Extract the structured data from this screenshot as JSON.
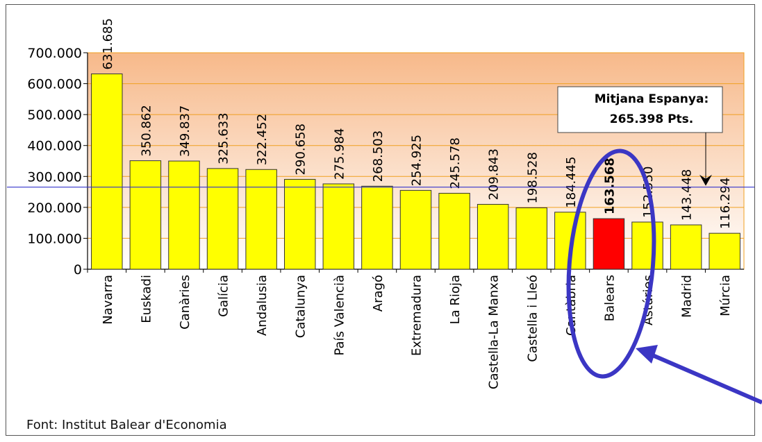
{
  "chart_data": {
    "type": "bar",
    "categories": [
      "Navarra",
      "Euskadi",
      "Canàries",
      "Galícia",
      "Andalusia",
      "Catalunya",
      "País Valencià",
      "Aragó",
      "Extremadura",
      "La Rioja",
      "Castella-La Manxa",
      "Castella i Lleó",
      "Cantàbria",
      "Balears",
      "Astúries",
      "Madrid",
      "Múrcia"
    ],
    "values": [
      631685,
      350862,
      349837,
      325633,
      322452,
      290658,
      275984,
      268503,
      254925,
      245578,
      209843,
      198528,
      184445,
      163568,
      152550,
      143448,
      116294
    ],
    "value_labels": [
      "631.685",
      "350.862",
      "349.837",
      "325.633",
      "322.452",
      "290.658",
      "275.984",
      "268.503",
      "254.925",
      "245.578",
      "209.843",
      "198.528",
      "184.445",
      "163.568",
      "152.550",
      "143.448",
      "116.294"
    ],
    "highlight_category": "Balears",
    "ylim": [
      0,
      700000
    ],
    "yticks": [
      0,
      100000,
      200000,
      300000,
      400000,
      500000,
      600000,
      700000
    ],
    "ytick_labels": [
      "0",
      "100.000",
      "200.000",
      "300.000",
      "400.000",
      "500.000",
      "600.000",
      "700.000"
    ],
    "average": 265398,
    "average_note": {
      "line1": "Mitjana Espanya:",
      "line2": "265.398 Pts."
    },
    "colors": {
      "bar": "#ffff00",
      "highlight_bar": "#ff0000",
      "plot_bg_top": "#f7b98a",
      "plot_bg_bottom": "#ffffff",
      "grid": "#f0a020",
      "average_line": "#3333cc",
      "annotation_circle": "#3b36c4"
    },
    "grid": true
  },
  "source_note": "Font: Institut Balear d'Economia"
}
